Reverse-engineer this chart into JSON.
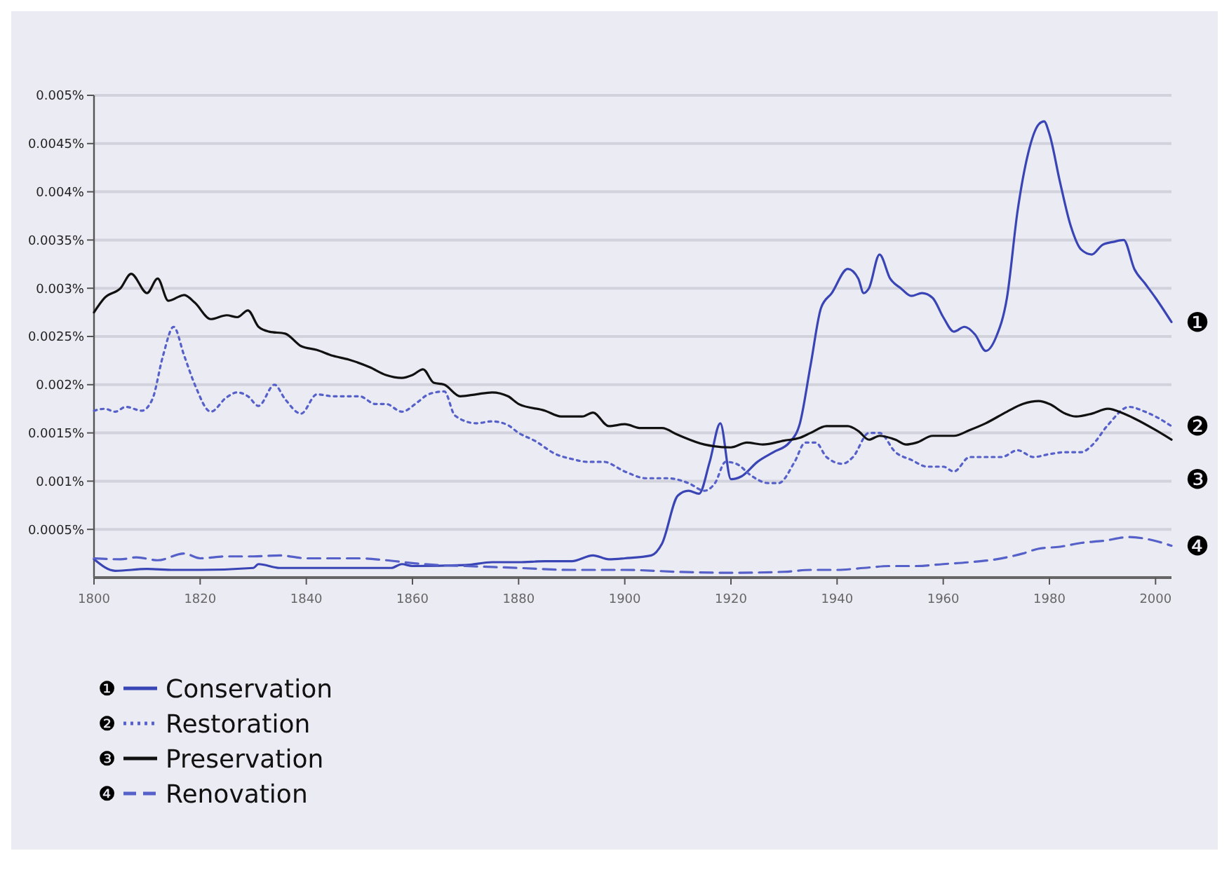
{
  "chart_data": {
    "type": "line",
    "xlim": [
      1800,
      2003
    ],
    "xticks": [
      1800,
      1820,
      1840,
      1860,
      1880,
      1900,
      1920,
      1940,
      1960,
      1980,
      2000
    ],
    "ylim": [
      0,
      0.005
    ],
    "yticks": [
      {
        "value": 0.0005,
        "label": "0.0005%"
      },
      {
        "value": 0.001,
        "label": "0.001%"
      },
      {
        "value": 0.0015,
        "label": "0.0015%"
      },
      {
        "value": 0.002,
        "label": "0.002%"
      },
      {
        "value": 0.0025,
        "label": "0.0025%"
      },
      {
        "value": 0.003,
        "label": "0.003%"
      },
      {
        "value": 0.0035,
        "label": "0.0035%"
      },
      {
        "value": 0.004,
        "label": "0.004%"
      },
      {
        "value": 0.0045,
        "label": "0.0045%"
      },
      {
        "value": 0.005,
        "label": "0.005%"
      }
    ],
    "grid": "y",
    "legend": "bottom left",
    "annotations": [
      "❶",
      "❷",
      "❸",
      "❹"
    ],
    "series": [
      {
        "name": "Conservation",
        "color": "#3a45b5",
        "line_style": "solid",
        "x": [
          1800,
          1804,
          1810,
          1815,
          1820,
          1830,
          1831,
          1835,
          1840,
          1850,
          1856,
          1858,
          1860,
          1870,
          1875,
          1880,
          1885,
          1890,
          1894,
          1897,
          1900,
          1905,
          1907,
          1910,
          1912,
          1914,
          1916,
          1918,
          1920,
          1922,
          1925,
          1928,
          1931,
          1933,
          1935,
          1937,
          1939,
          1942,
          1944,
          1945,
          1946,
          1948,
          1950,
          1952,
          1954,
          1956,
          1958,
          1960,
          1962,
          1964,
          1966,
          1968,
          1970,
          1972,
          1974,
          1976,
          1978,
          1979,
          1980,
          1982,
          1984,
          1986,
          1988,
          1990,
          1992,
          1994,
          1996,
          1998,
          2000,
          2003
        ],
        "values": [
          0.00019,
          7e-05,
          9e-05,
          8e-05,
          8e-05,
          0.0001,
          0.00014,
          0.0001,
          0.0001,
          0.0001,
          0.0001,
          0.00014,
          0.00012,
          0.00013,
          0.00016,
          0.00016,
          0.00017,
          0.00017,
          0.00023,
          0.00019,
          0.0002,
          0.00023,
          0.00035,
          0.00085,
          0.0009,
          0.00087,
          0.0012,
          0.0016,
          0.00102,
          0.00105,
          0.0012,
          0.0013,
          0.0014,
          0.0016,
          0.0022,
          0.0028,
          0.00295,
          0.0032,
          0.0031,
          0.00295,
          0.003,
          0.00335,
          0.0031,
          0.003,
          0.00292,
          0.00295,
          0.0029,
          0.0027,
          0.00255,
          0.0026,
          0.00252,
          0.00235,
          0.0025,
          0.0029,
          0.0038,
          0.0044,
          0.0047,
          0.00473,
          0.0046,
          0.0041,
          0.00365,
          0.0034,
          0.00335,
          0.00345,
          0.00348,
          0.0035,
          0.0032,
          0.00305,
          0.0029,
          0.00265
        ]
      },
      {
        "name": "Restoration",
        "color": "#5560c8",
        "line_style": "dotted",
        "x": [
          1800,
          1802,
          1804,
          1806,
          1809,
          1811,
          1813,
          1815,
          1817,
          1819,
          1822,
          1825,
          1827,
          1829,
          1831,
          1834,
          1836,
          1839,
          1842,
          1845,
          1848,
          1850,
          1853,
          1855,
          1858,
          1861,
          1863,
          1866,
          1868,
          1872,
          1875,
          1878,
          1880,
          1883,
          1887,
          1890,
          1893,
          1896,
          1900,
          1904,
          1908,
          1912,
          1915,
          1917,
          1919,
          1921,
          1924,
          1927,
          1929,
          1932,
          1934,
          1936,
          1938,
          1941,
          1943,
          1946,
          1948,
          1951,
          1954,
          1957,
          1960,
          1962,
          1965,
          1968,
          1971,
          1974,
          1977,
          1980,
          1983,
          1986,
          1988,
          1991,
          1995,
          1998,
          2000,
          2003
        ],
        "values": [
          0.00173,
          0.00175,
          0.00172,
          0.00177,
          0.00173,
          0.00185,
          0.0023,
          0.0026,
          0.0023,
          0.002,
          0.00172,
          0.00187,
          0.00192,
          0.00188,
          0.00178,
          0.002,
          0.00185,
          0.0017,
          0.0019,
          0.00188,
          0.00188,
          0.00188,
          0.0018,
          0.0018,
          0.00172,
          0.00182,
          0.0019,
          0.00193,
          0.00168,
          0.0016,
          0.00162,
          0.00158,
          0.0015,
          0.00142,
          0.00128,
          0.00123,
          0.0012,
          0.0012,
          0.0011,
          0.00103,
          0.00103,
          0.00098,
          0.0009,
          0.00098,
          0.0012,
          0.00118,
          0.00105,
          0.00098,
          0.00098,
          0.0012,
          0.0014,
          0.0014,
          0.00125,
          0.00118,
          0.00125,
          0.0015,
          0.0015,
          0.0013,
          0.00122,
          0.00115,
          0.00115,
          0.0011,
          0.00125,
          0.00125,
          0.00125,
          0.00132,
          0.00125,
          0.00128,
          0.0013,
          0.0013,
          0.00137,
          0.00158,
          0.00177,
          0.00172,
          0.00167,
          0.00157
        ]
      },
      {
        "name": "Preservation",
        "color": "#111111",
        "line_style": "solid",
        "x": [
          1800,
          1802,
          1805,
          1807,
          1810,
          1812,
          1814,
          1817,
          1819,
          1822,
          1825,
          1827,
          1829,
          1831,
          1833,
          1836,
          1839,
          1842,
          1845,
          1848,
          1852,
          1855,
          1858,
          1860,
          1862,
          1864,
          1866,
          1869,
          1872,
          1875,
          1878,
          1880,
          1885,
          1888,
          1892,
          1894,
          1897,
          1900,
          1903,
          1907,
          1910,
          1915,
          1920,
          1923,
          1926,
          1930,
          1933,
          1935,
          1938,
          1942,
          1944,
          1946,
          1948,
          1951,
          1953,
          1955,
          1958,
          1962,
          1965,
          1968,
          1972,
          1975,
          1978,
          1980,
          1983,
          1985,
          1988,
          1991,
          1994,
          1996,
          2000,
          2003
        ],
        "values": [
          0.00275,
          0.0029,
          0.003,
          0.00315,
          0.00295,
          0.0031,
          0.00287,
          0.00293,
          0.00285,
          0.00268,
          0.00272,
          0.0027,
          0.00277,
          0.0026,
          0.00255,
          0.00253,
          0.0024,
          0.00236,
          0.0023,
          0.00226,
          0.00218,
          0.0021,
          0.00207,
          0.0021,
          0.00216,
          0.00202,
          0.002,
          0.00188,
          0.0019,
          0.00192,
          0.00188,
          0.0018,
          0.00173,
          0.00167,
          0.00167,
          0.00171,
          0.00157,
          0.00159,
          0.00155,
          0.00155,
          0.00148,
          0.00138,
          0.00135,
          0.0014,
          0.00138,
          0.00142,
          0.00145,
          0.0015,
          0.00157,
          0.00157,
          0.00152,
          0.00143,
          0.00147,
          0.00143,
          0.00138,
          0.0014,
          0.00147,
          0.00147,
          0.00153,
          0.0016,
          0.00172,
          0.0018,
          0.00183,
          0.0018,
          0.0017,
          0.00167,
          0.0017,
          0.00175,
          0.0017,
          0.00165,
          0.00153,
          0.00143
        ]
      },
      {
        "name": "Renovation",
        "color": "#5560c8",
        "line_style": "dashed",
        "x": [
          1800,
          1805,
          1808,
          1812,
          1817,
          1820,
          1825,
          1830,
          1835,
          1840,
          1845,
          1850,
          1855,
          1860,
          1865,
          1870,
          1880,
          1890,
          1900,
          1910,
          1920,
          1930,
          1935,
          1940,
          1945,
          1950,
          1955,
          1960,
          1965,
          1970,
          1975,
          1978,
          1982,
          1986,
          1990,
          1995,
          2000,
          2003
        ],
        "values": [
          0.0002,
          0.00019,
          0.00021,
          0.00018,
          0.00025,
          0.0002,
          0.00022,
          0.00022,
          0.00023,
          0.0002,
          0.0002,
          0.0002,
          0.00018,
          0.00015,
          0.00013,
          0.00012,
          0.0001,
          8e-05,
          8e-05,
          6e-05,
          5e-05,
          6e-05,
          8e-05,
          8e-05,
          0.0001,
          0.00012,
          0.00012,
          0.00014,
          0.00016,
          0.00019,
          0.00025,
          0.0003,
          0.00032,
          0.00036,
          0.00038,
          0.00042,
          0.00038,
          0.00033
        ]
      }
    ]
  }
}
